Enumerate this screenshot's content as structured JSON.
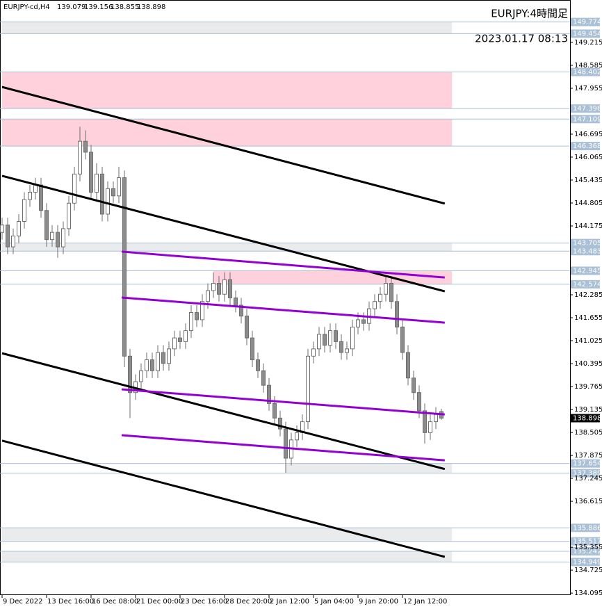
{
  "chart_data": {
    "type": "candlestick",
    "symbol": "EURJPY-cd,H4",
    "title": "EURJPY:4時間足",
    "timestamp": "2023.01.17 08:13",
    "ylim": [
      134.04,
      150.34
    ],
    "xlim": [
      -0.375,
      102.125
    ],
    "yticks": [
      149.215,
      148.585,
      147.955,
      146.695,
      146.065,
      145.435,
      144.805,
      144.175,
      142.285,
      141.655,
      141.025,
      140.395,
      139.765,
      139.135,
      138.505,
      137.875,
      137.245,
      136.615,
      135.355,
      134.725,
      134.095
    ],
    "xticks": [
      {
        "value": 0,
        "label": "9 Dec 2022"
      },
      {
        "value": 8,
        "label": "13 Dec 16:00"
      },
      {
        "value": 16,
        "label": "16 Dec 08:00"
      },
      {
        "value": 24,
        "label": "21 Dec 00:00"
      },
      {
        "value": 32,
        "label": "23 Dec 16:00"
      },
      {
        "value": 40,
        "label": "28 Dec 20:00"
      },
      {
        "value": 48,
        "label": "2 Jan 12:00"
      },
      {
        "value": 56,
        "label": "5 Jan 04:00"
      },
      {
        "value": 64,
        "label": "9 Jan 20:00"
      },
      {
        "value": 72,
        "label": "12 Jan 12:00"
      }
    ],
    "up_color": "#ffffff",
    "down_color": "#8c8c8c",
    "wick_color": "#6e6e6e",
    "open": [
      144.0,
      144.2,
      143.6,
      143.9,
      144.3,
      144.9,
      145.1,
      145.3,
      144.6,
      143.8,
      144.0,
      143.6,
      144.1,
      144.8,
      145.6,
      146.5,
      146.2,
      145.1,
      145.6,
      144.5,
      145.2,
      145.0,
      145.5,
      140.6,
      139.6,
      139.9,
      140.2,
      140.5,
      140.2,
      140.7,
      140.4,
      140.8,
      141.1,
      141.0,
      141.3,
      141.8,
      141.6,
      142.1,
      142.4,
      142.6,
      142.3,
      142.7,
      142.2,
      142.0,
      141.7,
      141.1,
      140.5,
      140.2,
      139.8,
      139.3,
      138.9,
      138.6,
      137.8,
      138.3,
      138.5,
      138.8,
      140.6,
      140.8,
      141.2,
      140.9,
      141.3,
      141.0,
      140.7,
      140.8,
      141.4,
      141.6,
      141.5,
      141.9,
      142.1,
      142.3,
      142.6,
      142.1,
      141.4,
      140.7,
      140.0,
      139.6,
      139.1,
      138.5,
      138.8,
      139.079
    ],
    "high": [
      144.4,
      144.4,
      144.1,
      144.5,
      145.1,
      145.3,
      145.5,
      145.5,
      144.8,
      144.2,
      144.2,
      144.3,
      145.0,
      145.8,
      146.9,
      146.8,
      146.4,
      145.9,
      145.8,
      145.4,
      145.4,
      145.8,
      145.7,
      140.8,
      140.1,
      140.4,
      140.7,
      140.7,
      140.9,
      140.9,
      141.0,
      141.3,
      141.3,
      141.5,
      142.0,
      142.0,
      142.3,
      142.6,
      142.9,
      142.8,
      142.9,
      142.9,
      142.4,
      142.2,
      141.9,
      141.3,
      140.7,
      140.4,
      140.0,
      139.5,
      139.1,
      138.8,
      138.5,
      138.7,
      139.0,
      140.8,
      141.0,
      141.4,
      141.4,
      141.5,
      141.5,
      141.2,
      141.0,
      141.6,
      141.8,
      141.8,
      142.1,
      142.3,
      142.5,
      142.8,
      142.8,
      142.3,
      141.6,
      140.9,
      140.2,
      139.8,
      139.3,
      139.0,
      139.2,
      139.156
    ],
    "low": [
      143.8,
      143.4,
      143.4,
      143.7,
      144.1,
      144.7,
      144.9,
      144.4,
      143.6,
      143.6,
      143.3,
      143.4,
      143.9,
      144.6,
      145.4,
      146.0,
      144.9,
      144.9,
      144.3,
      144.3,
      144.8,
      144.8,
      140.3,
      138.9,
      139.4,
      139.7,
      140.0,
      140.0,
      140.0,
      140.2,
      140.2,
      140.6,
      140.8,
      140.8,
      141.1,
      141.4,
      141.4,
      141.9,
      142.2,
      142.1,
      142.1,
      142.0,
      141.8,
      141.5,
      140.9,
      140.3,
      140.0,
      139.6,
      139.1,
      138.7,
      138.4,
      137.4,
      137.6,
      138.1,
      138.3,
      138.6,
      140.4,
      140.6,
      140.7,
      140.7,
      140.8,
      140.5,
      140.5,
      140.6,
      141.2,
      141.3,
      141.3,
      141.7,
      141.9,
      142.1,
      141.9,
      141.2,
      140.5,
      139.8,
      139.4,
      138.9,
      138.2,
      138.3,
      138.6,
      138.855
    ],
    "close": [
      144.2,
      143.6,
      143.9,
      144.3,
      144.9,
      145.1,
      145.3,
      144.6,
      143.8,
      144.0,
      143.6,
      144.1,
      144.8,
      145.6,
      146.5,
      146.2,
      145.1,
      145.6,
      144.5,
      145.2,
      145.0,
      145.5,
      140.6,
      139.6,
      139.9,
      140.2,
      140.5,
      140.2,
      140.7,
      140.4,
      140.8,
      141.1,
      141.0,
      141.3,
      141.8,
      141.6,
      142.1,
      142.4,
      142.6,
      142.3,
      142.7,
      142.2,
      142.0,
      141.7,
      141.1,
      140.5,
      140.2,
      139.8,
      139.3,
      138.9,
      138.6,
      137.8,
      138.3,
      138.5,
      138.8,
      140.6,
      140.8,
      141.2,
      140.9,
      141.3,
      141.0,
      140.7,
      140.8,
      141.4,
      141.6,
      141.5,
      141.9,
      142.1,
      142.3,
      142.6,
      142.1,
      141.4,
      140.7,
      140.0,
      139.6,
      139.1,
      138.5,
      138.8,
      139.0,
      138.898
    ],
    "zones": [
      {
        "from": 149.454,
        "to": 149.774,
        "color": "#e9ebed",
        "start": 0,
        "end": 80.9
      },
      {
        "from": 147.398,
        "to": 148.402,
        "color": "#ffd1dc",
        "start": 0,
        "end": 80.9
      },
      {
        "from": 146.368,
        "to": 147.109,
        "color": "#ffd1dc",
        "start": 0,
        "end": 80.9
      },
      {
        "from": 143.483,
        "to": 143.705,
        "color": "#e9ebed",
        "start": 0,
        "end": 80.9
      },
      {
        "from": 142.574,
        "to": 142.945,
        "color": "#ffd1dc",
        "start": 38,
        "end": 80.9
      },
      {
        "from": 137.389,
        "to": 137.654,
        "color": "#e9ebed",
        "start": 51,
        "end": 80.9
      },
      {
        "from": 135.517,
        "to": 135.886,
        "color": "#e9ebed",
        "start": 0,
        "end": 80.9
      },
      {
        "from": 134.949,
        "to": 135.242,
        "color": "#e9ebed",
        "start": 0,
        "end": 80.9
      }
    ],
    "level_color": "#a9c0d6",
    "trendlines": [
      {
        "x": [
          0,
          79.6
        ],
        "y": [
          147.99,
          144.79
        ],
        "color": "#000000"
      },
      {
        "x": [
          0,
          79.6
        ],
        "y": [
          145.55,
          142.38
        ],
        "color": "#000000"
      },
      {
        "x": [
          0,
          79.6
        ],
        "y": [
          140.68,
          137.5
        ],
        "color": "#000000"
      },
      {
        "x": [
          0,
          79.6
        ],
        "y": [
          138.28,
          135.09
        ],
        "color": "#000000"
      },
      {
        "x": [
          21.5,
          79.6
        ],
        "y": [
          143.47,
          142.76
        ],
        "color": "#9400d3"
      },
      {
        "x": [
          21.5,
          79.6
        ],
        "y": [
          142.21,
          141.52
        ],
        "color": "#9400d3"
      },
      {
        "x": [
          21.5,
          79.6
        ],
        "y": [
          139.69,
          139.0
        ],
        "color": "#9400d3"
      },
      {
        "x": [
          21.5,
          79.6
        ],
        "y": [
          138.43,
          137.74
        ],
        "color": "#9400d3"
      }
    ]
  }
}
